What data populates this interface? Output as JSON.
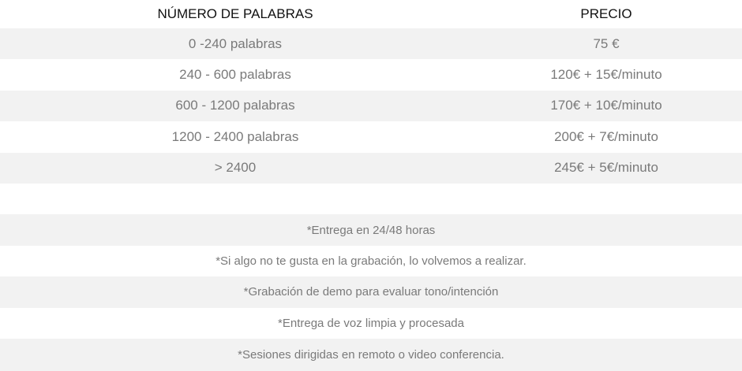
{
  "table": {
    "headers": [
      "NÚMERO DE PALABRAS",
      "PRECIO"
    ],
    "rows": [
      {
        "words": "0 -240 palabras",
        "price": "75 €"
      },
      {
        "words": "240 - 600 palabras",
        "price": "120€ + 15€/minuto"
      },
      {
        "words": "600 - 1200 palabras",
        "price": "170€ + 10€/minuto"
      },
      {
        "words": "1200 - 2400 palabras",
        "price": "200€ + 7€/minuto"
      },
      {
        "words": "> 2400",
        "price": "245€ + 5€/minuto"
      }
    ]
  },
  "notes": [
    "*Entrega en 24/48 horas",
    "*Si algo no te gusta en la grabación, lo volvemos a realizar.",
    "*Grabación de demo para evaluar tono/intención",
    "*Entrega de voz limpia y procesada",
    "*Sesiones dirigidas en remoto o video conferencia."
  ],
  "colors": {
    "stripe": "#f2f2f2",
    "text": "#7a7a7a",
    "header_text": "#111111"
  }
}
